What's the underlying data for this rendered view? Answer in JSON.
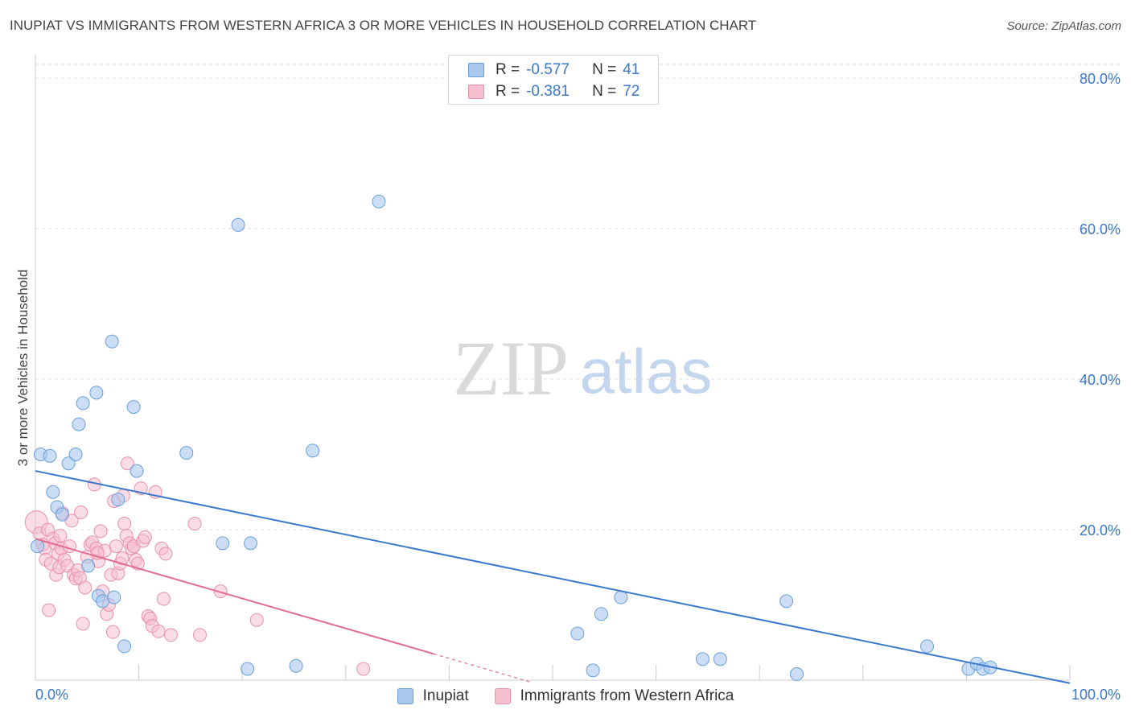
{
  "colors": {
    "blue_fill": "#a9c8ee",
    "blue_stroke": "#6a9fd8",
    "blue_line": "#3a78d0",
    "pink_fill": "#f6bfd0",
    "pink_stroke": "#e890ae",
    "pink_line": "#e26c93",
    "tick_label": "#3b78c9",
    "grid": "#dddddd",
    "watermark": "#d9d9d9",
    "watermark_atlas": "#c4d6ee"
  },
  "header": {
    "title": "INUPIAT VS IMMIGRANTS FROM WESTERN AFRICA 3 OR MORE VEHICLES IN HOUSEHOLD CORRELATION CHART",
    "source": "Source: ZipAtlas.com"
  },
  "legend": {
    "series1": {
      "r_label": "R =",
      "r_value": "-0.577",
      "n_label": "N =",
      "n_value": "41"
    },
    "series2": {
      "r_label": "R =",
      "r_value": "-0.381",
      "n_label": "N =",
      "n_value": "72"
    }
  },
  "bottom_legend": {
    "series1": "Inupiat",
    "series2": "Immigrants from Western Africa"
  },
  "watermark": {
    "zip": "ZIP",
    "atlas": "atlas"
  },
  "chart_data": {
    "type": "scatter",
    "title": "INUPIAT VS IMMIGRANTS FROM WESTERN AFRICA 3 OR MORE VEHICLES IN HOUSEHOLD CORRELATION CHART",
    "xlabel": "",
    "ylabel": "3 or more Vehicles in Household",
    "xlim": [
      0,
      100
    ],
    "ylim": [
      0,
      80
    ],
    "y_ticks": [
      20,
      40,
      60,
      80
    ],
    "y_tick_labels": [
      "20.0%",
      "40.0%",
      "60.0%",
      "80.0%"
    ],
    "x_tick_labels": [
      "0.0%",
      "100.0%"
    ],
    "grid": true,
    "legend_position": "top-center",
    "series": [
      {
        "name": "Inupiat",
        "color": "#a9c8ee",
        "r": -0.577,
        "n": 41,
        "trend": {
          "x": [
            0,
            100
          ],
          "y": [
            27.8,
            -0.4
          ]
        },
        "points": [
          [
            0.2,
            17.8
          ],
          [
            0.5,
            30
          ],
          [
            1.4,
            29.8
          ],
          [
            1.7,
            25
          ],
          [
            2.1,
            23
          ],
          [
            2.6,
            22
          ],
          [
            3.2,
            28.8
          ],
          [
            3.9,
            30
          ],
          [
            4.2,
            34
          ],
          [
            4.6,
            36.8
          ],
          [
            5.1,
            15.2
          ],
          [
            5.9,
            38.2
          ],
          [
            6.1,
            11.2
          ],
          [
            6.5,
            10.5
          ],
          [
            7.4,
            45
          ],
          [
            7.6,
            11
          ],
          [
            8.0,
            24
          ],
          [
            8.6,
            4.5
          ],
          [
            9.5,
            36.3
          ],
          [
            9.8,
            27.8
          ],
          [
            14.6,
            30.2
          ],
          [
            18.1,
            18.2
          ],
          [
            19.6,
            60.5
          ],
          [
            20.5,
            1.5
          ],
          [
            20.8,
            18.2
          ],
          [
            25.2,
            1.9
          ],
          [
            26.8,
            30.5
          ],
          [
            33.2,
            63.6
          ],
          [
            52.4,
            6.2
          ],
          [
            53.9,
            1.3
          ],
          [
            54.7,
            8.8
          ],
          [
            56.6,
            11
          ],
          [
            64.5,
            2.8
          ],
          [
            66.2,
            2.8
          ],
          [
            72.6,
            10.5
          ],
          [
            73.6,
            0.8
          ],
          [
            86.2,
            4.5
          ],
          [
            90.2,
            1.5
          ],
          [
            91.0,
            2.2
          ],
          [
            91.6,
            1.5
          ],
          [
            92.3,
            1.7
          ]
        ]
      },
      {
        "name": "Immigrants from Western Africa",
        "color": "#f6bfd0",
        "r": -0.381,
        "n": 72,
        "trend": {
          "x": [
            0,
            38.5
          ],
          "y": [
            18.8,
            3.5
          ],
          "dashed_to": {
            "x": 48,
            "y": -0.3
          }
        },
        "points": [
          [
            0.1,
            21
          ],
          [
            0.4,
            19.5
          ],
          [
            0.7,
            18
          ],
          [
            0.9,
            17.5
          ],
          [
            1.0,
            16
          ],
          [
            1.2,
            20
          ],
          [
            1.3,
            9.3
          ],
          [
            1.5,
            15.5
          ],
          [
            1.7,
            18.8
          ],
          [
            1.9,
            18.2
          ],
          [
            2.0,
            14
          ],
          [
            2.2,
            16.8
          ],
          [
            2.3,
            15
          ],
          [
            2.5,
            17.5
          ],
          [
            2.6,
            22.2
          ],
          [
            2.8,
            16
          ],
          [
            3.1,
            15.2
          ],
          [
            3.3,
            17.8
          ],
          [
            3.5,
            21.2
          ],
          [
            3.7,
            14
          ],
          [
            3.9,
            13.5
          ],
          [
            4.1,
            14.6
          ],
          [
            4.3,
            13.6
          ],
          [
            4.4,
            22.3
          ],
          [
            4.6,
            7.5
          ],
          [
            4.8,
            12.3
          ],
          [
            5.0,
            16.4
          ],
          [
            5.3,
            18
          ],
          [
            5.5,
            18.3
          ],
          [
            5.7,
            26
          ],
          [
            5.9,
            17.5
          ],
          [
            6.1,
            15.8
          ],
          [
            6.3,
            19.8
          ],
          [
            6.5,
            11.8
          ],
          [
            6.7,
            17.2
          ],
          [
            6.9,
            8.8
          ],
          [
            7.1,
            10
          ],
          [
            7.3,
            14
          ],
          [
            7.5,
            6.4
          ],
          [
            7.6,
            23.8
          ],
          [
            7.8,
            17.8
          ],
          [
            8.0,
            14.2
          ],
          [
            8.2,
            15.5
          ],
          [
            8.4,
            16.2
          ],
          [
            8.5,
            24.5
          ],
          [
            8.6,
            20.8
          ],
          [
            8.8,
            19.2
          ],
          [
            8.9,
            28.8
          ],
          [
            9.1,
            18.2
          ],
          [
            9.3,
            17.5
          ],
          [
            9.5,
            17.8
          ],
          [
            9.7,
            16
          ],
          [
            9.9,
            15.5
          ],
          [
            10.2,
            25.5
          ],
          [
            10.4,
            18.5
          ],
          [
            10.6,
            19
          ],
          [
            10.9,
            8.5
          ],
          [
            11.1,
            8.2
          ],
          [
            11.3,
            7.2
          ],
          [
            11.6,
            25
          ],
          [
            11.9,
            6.5
          ],
          [
            12.2,
            17.5
          ],
          [
            12.4,
            10.8
          ],
          [
            12.6,
            16.8
          ],
          [
            13.1,
            6
          ],
          [
            15.4,
            20.8
          ],
          [
            15.9,
            6
          ],
          [
            17.9,
            11.8
          ],
          [
            21.4,
            8
          ],
          [
            31.7,
            1.5
          ],
          [
            2.4,
            19.2
          ],
          [
            6.0,
            16.9
          ]
        ]
      }
    ]
  }
}
